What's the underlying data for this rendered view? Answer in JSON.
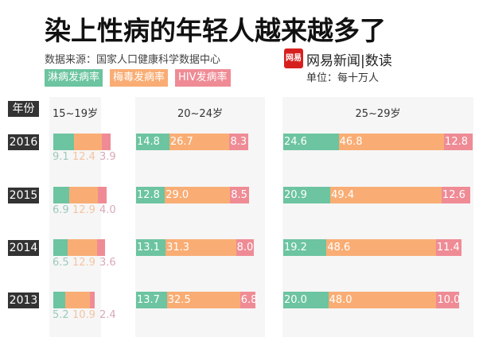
{
  "title": "染上性病的年轻人越来越多了",
  "source": "数据来源：国家人口健康科学数据中心",
  "brand": "网易新闻|数读",
  "logo_text": "网易",
  "unit": "单位：每十万人",
  "year_header": "年份",
  "colors": {
    "gonorrhea": "#6cc4a0",
    "syphilis": "#f9ad74",
    "hiv": "#ef8b95"
  },
  "chart_data": {
    "type": "bar",
    "stacked": true,
    "orientation": "horizontal",
    "title": "染上性病的年轻人越来越多了",
    "legend": [
      "淋病发病率",
      "梅毒发病率",
      "HIV发病率"
    ],
    "legend_placement": "top-left",
    "categories": [
      "2016",
      "2015",
      "2014",
      "2013"
    ],
    "groups": [
      {
        "label": "15~19岁",
        "series": [
          {
            "name": "淋病发病率",
            "values": [
              9.1,
              6.9,
              6.5,
              5.2
            ]
          },
          {
            "name": "梅毒发病率",
            "values": [
              12.4,
              12.9,
              12.9,
              10.9
            ]
          },
          {
            "name": "HIV发病率",
            "values": [
              3.9,
              4.0,
              3.6,
              2.4
            ]
          }
        ]
      },
      {
        "label": "20~24岁",
        "series": [
          {
            "name": "淋病发病率",
            "values": [
              14.8,
              12.8,
              13.1,
              13.7
            ]
          },
          {
            "name": "梅毒发病率",
            "values": [
              26.7,
              29.0,
              31.3,
              32.5
            ]
          },
          {
            "name": "HIV发病率",
            "values": [
              8.3,
              8.5,
              8.0,
              6.8
            ]
          }
        ]
      },
      {
        "label": "25~29岁",
        "series": [
          {
            "name": "淋病发病率",
            "values": [
              24.6,
              20.9,
              19.2,
              20.0
            ]
          },
          {
            "name": "梅毒发病率",
            "values": [
              46.8,
              49.4,
              48.6,
              48.0
            ]
          },
          {
            "name": "HIV发病率",
            "values": [
              12.8,
              12.6,
              11.4,
              10.0
            ]
          }
        ]
      }
    ]
  }
}
